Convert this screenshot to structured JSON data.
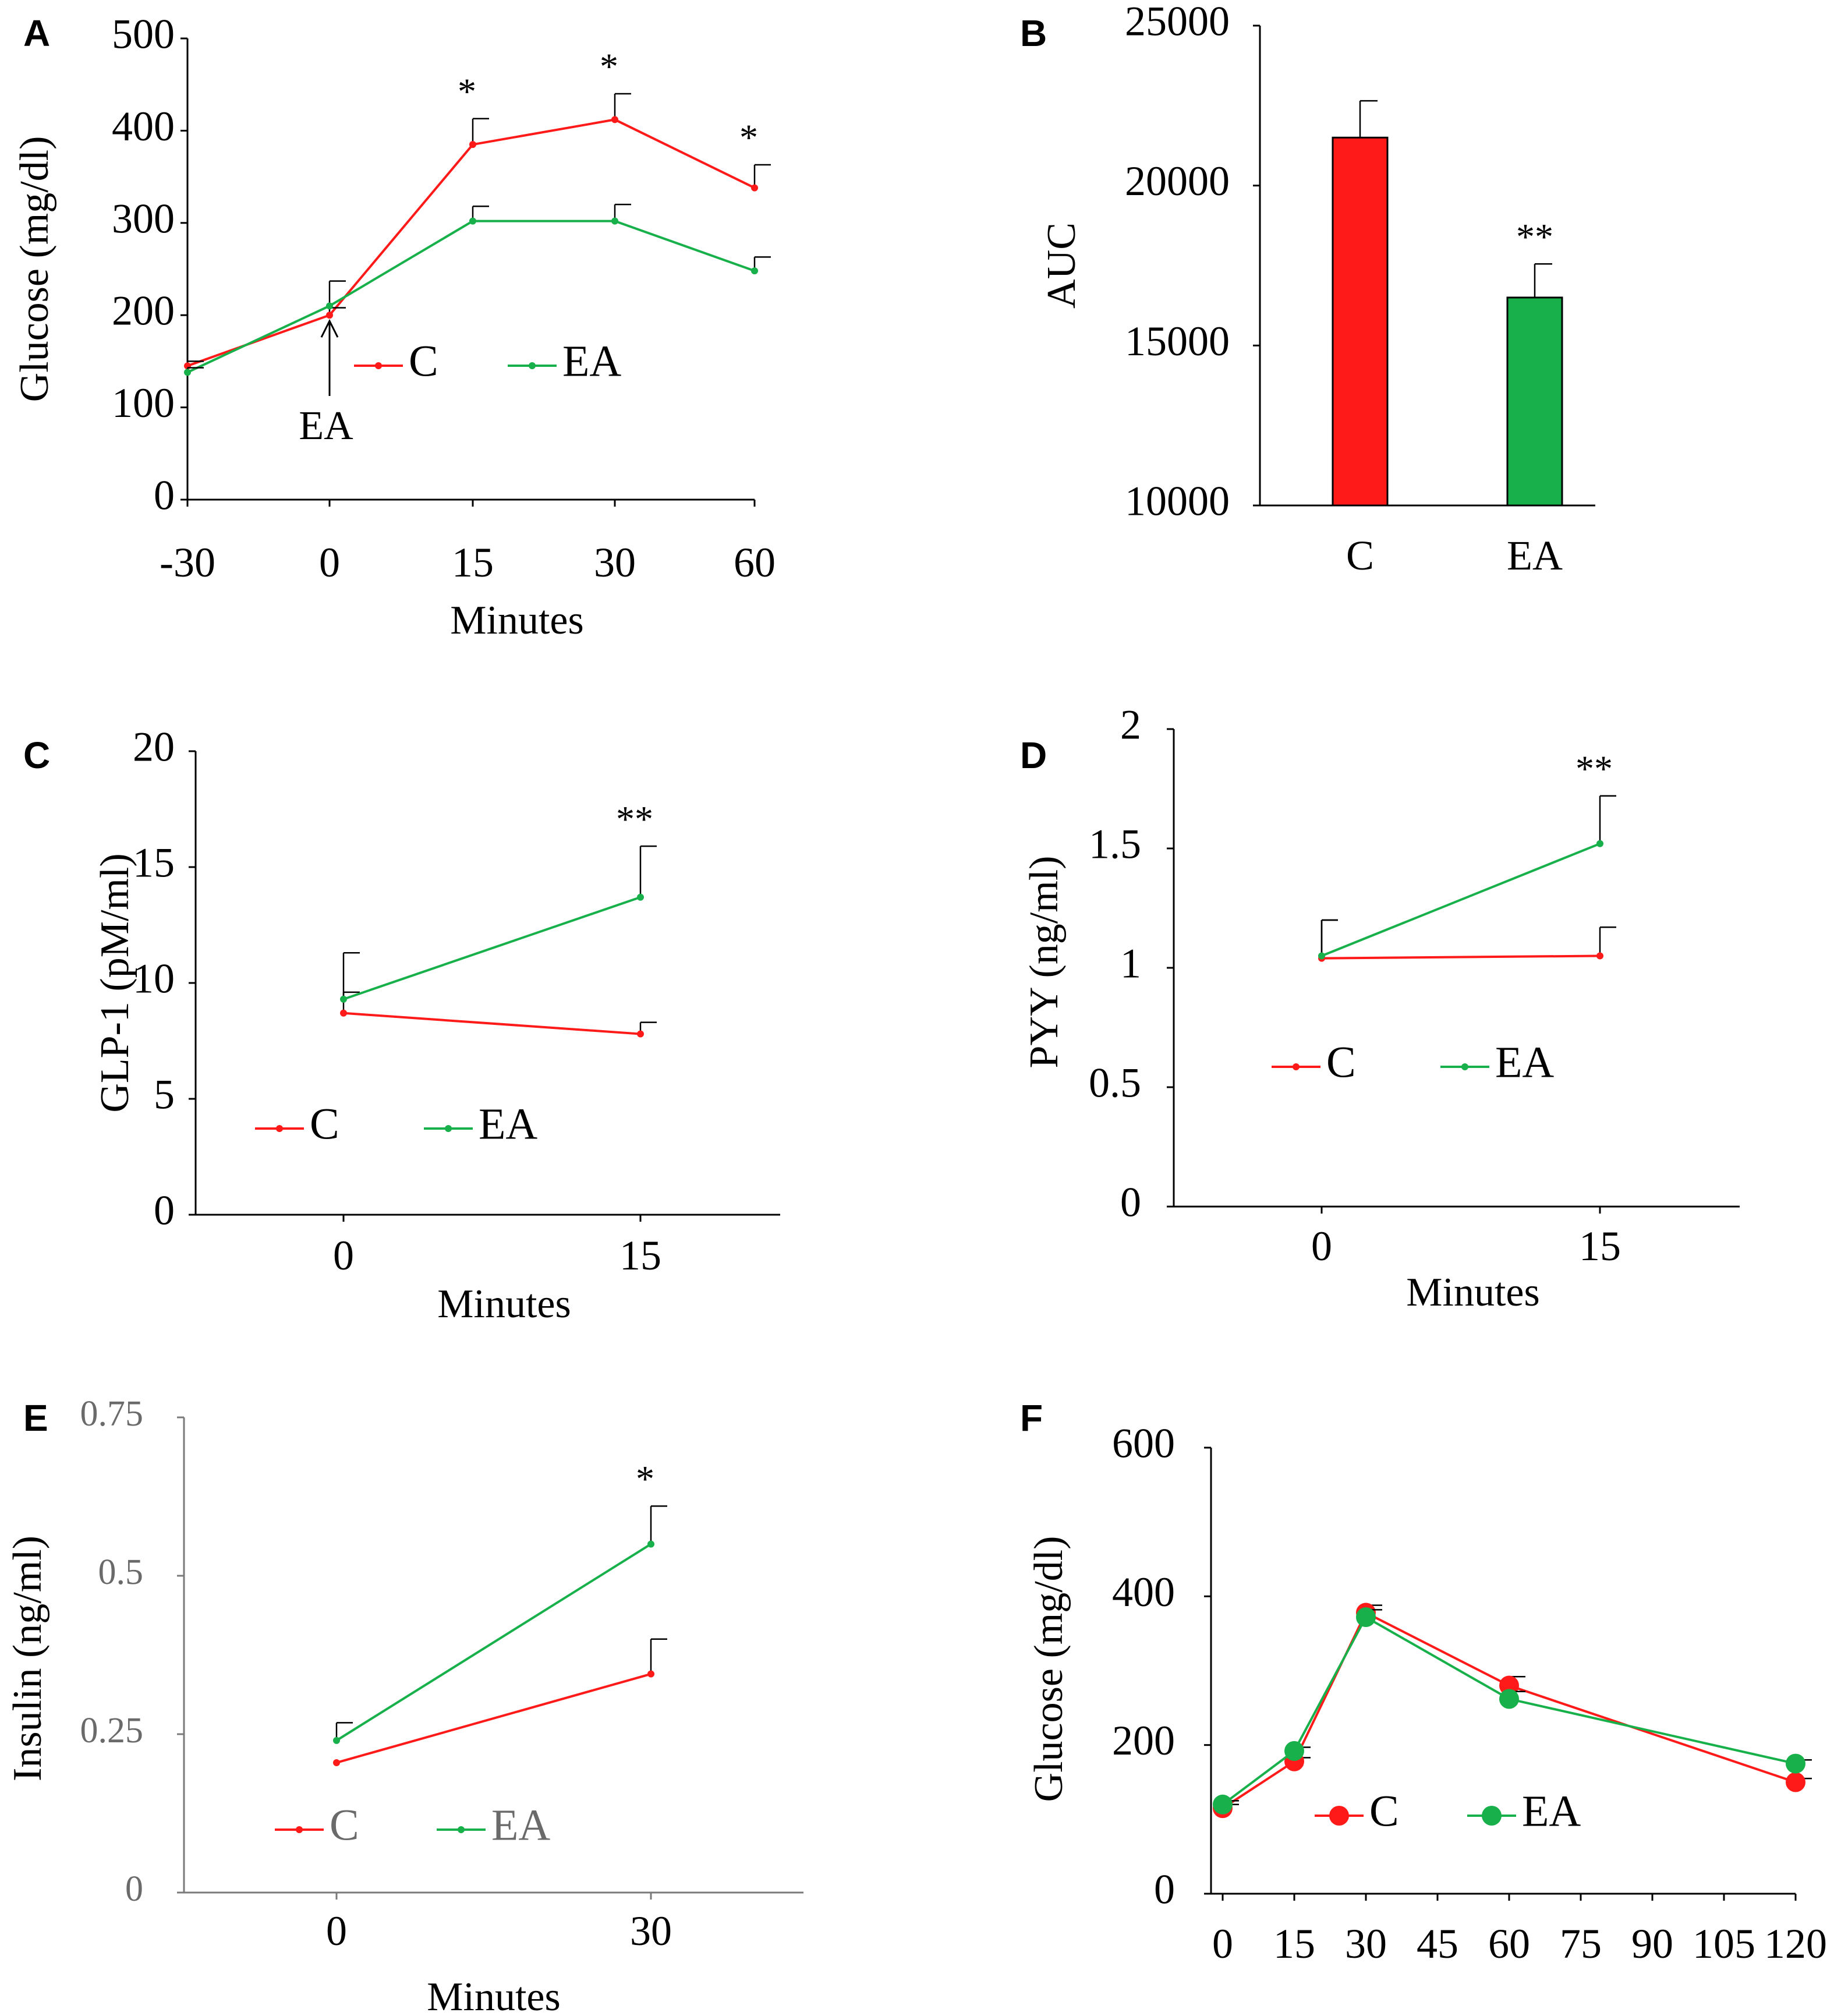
{
  "colors": {
    "C": "#ff1a1a",
    "EA": "#18b04a",
    "gray_text": "#6a6a6a"
  },
  "chart_data": [
    {
      "panel": "A",
      "type": "line",
      "xlabel": "Minutes",
      "ylabel": "Glucose  (mg/dl)",
      "categories": [
        "-30",
        "0",
        "15",
        "30",
        "60"
      ],
      "yticks": [
        "0",
        "100",
        "200",
        "300",
        "400",
        "500"
      ],
      "ylim": [
        0,
        500
      ],
      "grid": false,
      "legend": "center-right",
      "annotation": "EA",
      "series": [
        {
          "name": "C",
          "values": [
            145,
            200,
            385,
            412,
            338
          ],
          "errors": [
            5,
            8,
            28,
            28,
            25
          ]
        },
        {
          "name": "EA",
          "values": [
            138,
            210,
            302,
            302,
            248
          ],
          "errors": [
            5,
            27,
            16,
            18,
            15
          ]
        }
      ],
      "significance": [
        "",
        "",
        "*",
        "*",
        "*"
      ]
    },
    {
      "panel": "B",
      "type": "bar",
      "xlabel": "",
      "ylabel": "AUC",
      "categories": [
        "C",
        "EA"
      ],
      "yticks": [
        "10000",
        "15000",
        "20000",
        "25000"
      ],
      "ylim": [
        10000,
        25000
      ],
      "grid": false,
      "series": [
        {
          "name": "AUC",
          "values": [
            21500,
            16500
          ],
          "errors": [
            1150,
            1050
          ]
        }
      ],
      "significance": [
        "",
        "**"
      ]
    },
    {
      "panel": "C",
      "type": "line",
      "xlabel": "Minutes",
      "ylabel": "GLP-1 (pM/ml)",
      "categories": [
        "0",
        "15"
      ],
      "yticks": [
        "0",
        "5",
        "10",
        "15",
        "20"
      ],
      "ylim": [
        0,
        20
      ],
      "grid": false,
      "legend": "bottom-center",
      "series": [
        {
          "name": "C",
          "values": [
            8.7,
            7.8
          ],
          "errors": [
            0.9,
            0.5
          ]
        },
        {
          "name": "EA",
          "values": [
            9.3,
            13.7
          ],
          "errors": [
            2.0,
            2.2
          ]
        }
      ],
      "significance": [
        "",
        "**"
      ]
    },
    {
      "panel": "D",
      "type": "line",
      "xlabel": "Minutes",
      "ylabel": "PYY (ng/ml)",
      "categories": [
        "0",
        "15"
      ],
      "yticks": [
        "0",
        "0.5",
        "1",
        "1.5",
        "2"
      ],
      "ylim": [
        0,
        2
      ],
      "grid": false,
      "legend": "center",
      "series": [
        {
          "name": "C",
          "values": [
            1.04,
            1.05
          ],
          "errors": [
            0.16,
            0.12
          ]
        },
        {
          "name": "EA",
          "values": [
            1.05,
            1.52
          ],
          "errors": [
            0.15,
            0.2
          ]
        }
      ],
      "significance": [
        "",
        "**"
      ]
    },
    {
      "panel": "E",
      "type": "line",
      "xlabel": "Minutes",
      "ylabel": "Insulin  (ng/ml)",
      "categories": [
        "0",
        "30"
      ],
      "yticks": [
        "0",
        "0.25",
        "0.5",
        "0.75"
      ],
      "ylim": [
        0,
        0.75
      ],
      "grid": false,
      "legend": "bottom-center",
      "series": [
        {
          "name": "C",
          "values": [
            0.205,
            0.345
          ],
          "errors": [
            0.0,
            0.055
          ]
        },
        {
          "name": "EA",
          "values": [
            0.24,
            0.55
          ],
          "errors": [
            0.028,
            0.06
          ]
        }
      ],
      "significance": [
        "",
        "*"
      ]
    },
    {
      "panel": "F",
      "type": "line",
      "xlabel": "",
      "ylabel": "Glucose  (mg/dl)",
      "x": [
        0,
        15,
        30,
        60,
        120
      ],
      "xticks": [
        "0",
        "15",
        "30",
        "45",
        "60",
        "75",
        "90",
        "105",
        "120"
      ],
      "yticks": [
        "0",
        "200",
        "400",
        "600"
      ],
      "xlim": [
        0,
        120
      ],
      "ylim": [
        0,
        600
      ],
      "grid": false,
      "legend": "bottom-center",
      "series": [
        {
          "name": "C",
          "values": [
            115,
            178,
            378,
            280,
            150
          ],
          "errors": [
            5,
            5,
            10,
            12,
            5
          ]
        },
        {
          "name": "EA",
          "values": [
            120,
            192,
            372,
            262,
            175
          ],
          "errors": [
            5,
            5,
            10,
            10,
            5
          ]
        }
      ],
      "significance": [
        "",
        "",
        "",
        "",
        ""
      ]
    }
  ]
}
